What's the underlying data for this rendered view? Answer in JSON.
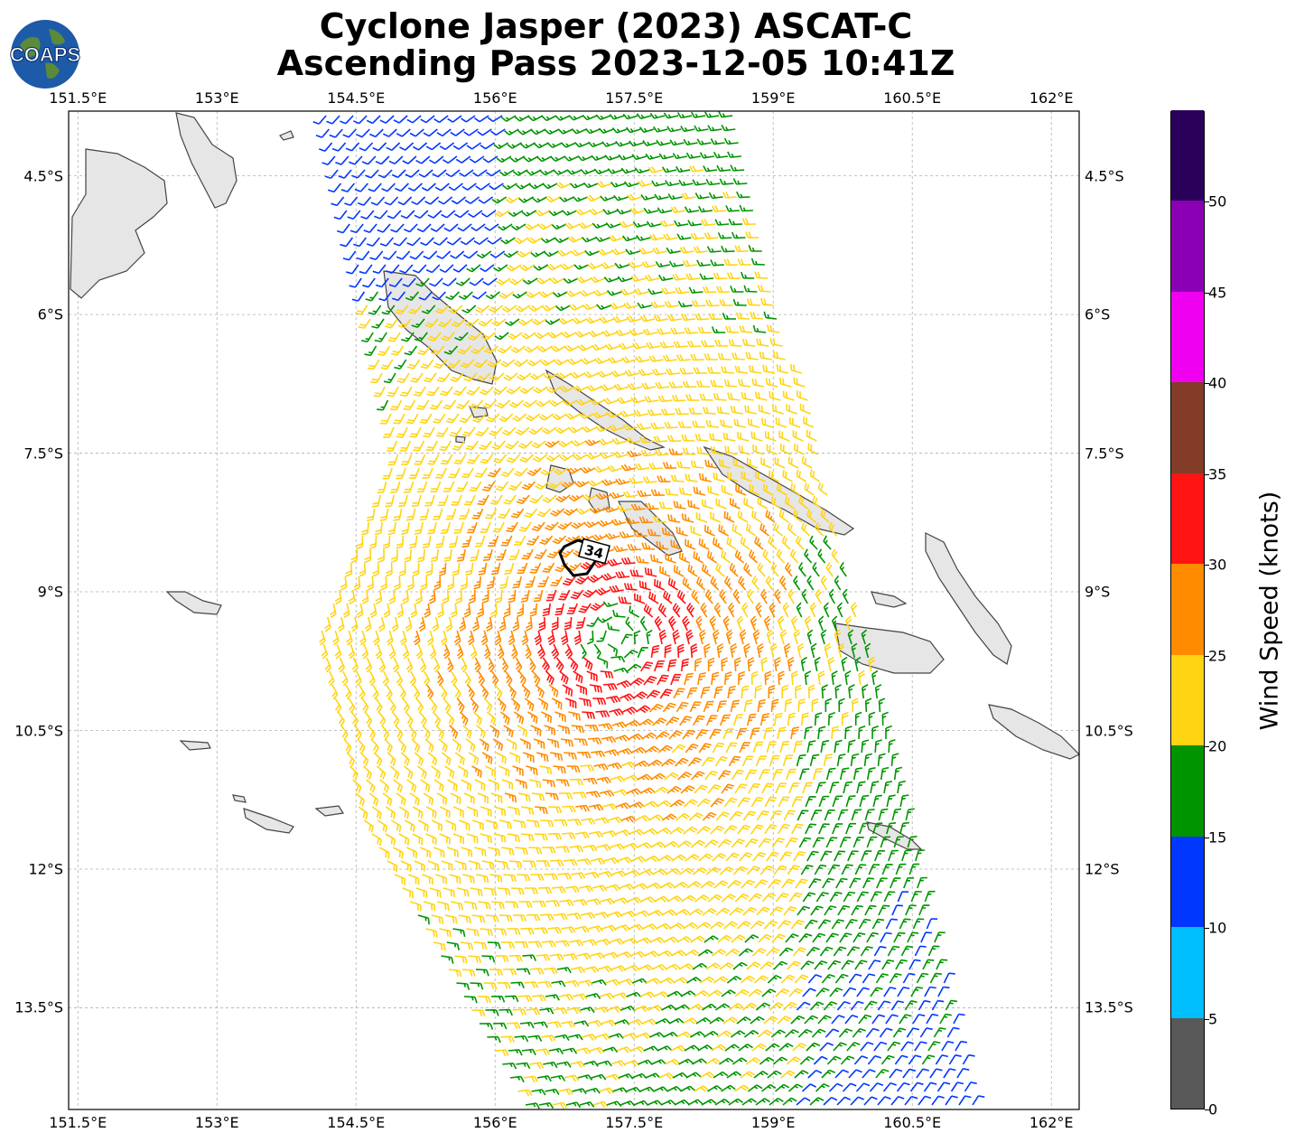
{
  "title": {
    "line1": "Cyclone Jasper (2023) ASCAT-C",
    "line2": "Ascending Pass 2023-12-05 10:41Z"
  },
  "logo": {
    "text": "COAPS"
  },
  "map": {
    "lon_range": [
      151.4,
      162.3
    ],
    "lat_range": [
      -3.8,
      -14.6
    ],
    "lon_ticks": [
      "151.5°E",
      "153°E",
      "154.5°E",
      "156°E",
      "157.5°E",
      "159°E",
      "160.5°E",
      "162°E"
    ],
    "lon_values": [
      151.5,
      153,
      154.5,
      156,
      157.5,
      159,
      160.5,
      162
    ],
    "lat_ticks": [
      "4.5°S",
      "6°S",
      "7.5°S",
      "9°S",
      "10.5°S",
      "12°S",
      "13.5°S"
    ],
    "lat_values": [
      -4.5,
      -6,
      -7.5,
      -9,
      -10.5,
      -12,
      -13.5
    ],
    "grid": true,
    "storm_center": {
      "lon": 157.3,
      "lat": -9.5
    },
    "wind_radius_label": "34"
  },
  "colorbar": {
    "label": "Wind Speed (knots)",
    "ticks": [
      "0",
      "5",
      "10",
      "15",
      "20",
      "25",
      "30",
      "35",
      "40",
      "45",
      "50"
    ],
    "colors": [
      "#595959",
      "#00bfff",
      "#0037ff",
      "#009400",
      "#ffd413",
      "#ff8c00",
      "#ff1414",
      "#823c28",
      "#f000f0",
      "#8b00b4",
      "#2b005a"
    ]
  }
}
